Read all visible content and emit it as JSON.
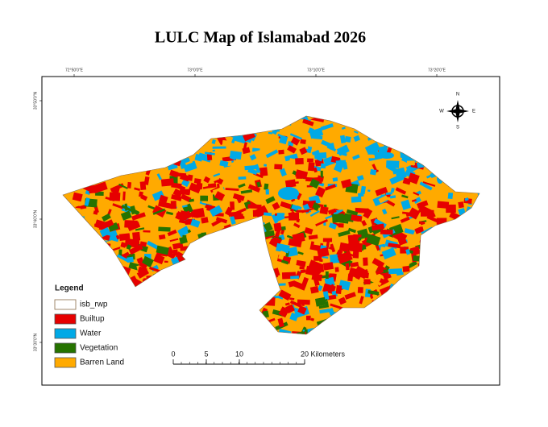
{
  "title": "LULC Map of Islamabad 2026",
  "graticule": {
    "top": [
      "72°50'0\"E",
      "73°0'0\"E",
      "73°10'0\"E",
      "73°20'0\"E"
    ],
    "left": [
      "33°50'0\"N",
      "33°40'0\"N",
      "33°30'0\"N"
    ]
  },
  "legend": {
    "title": "Legend",
    "items": [
      {
        "label": "isb_rwp",
        "color": "#ffffff",
        "border": "#8b6b4a"
      },
      {
        "label": "Builtup",
        "color": "#e60000",
        "border": "#555555"
      },
      {
        "label": "Water",
        "color": "#00a9e6",
        "border": "#555555"
      },
      {
        "label": "Vegetation",
        "color": "#267300",
        "border": "#555555"
      },
      {
        "label": "Barren Land",
        "color": "#ffaa00",
        "border": "#555555"
      }
    ]
  },
  "scale_bar": {
    "labels": [
      "0",
      "5",
      "10",
      "20 Kilometers"
    ]
  },
  "north_arrow": {
    "n": "N",
    "e": "E",
    "s": "S",
    "w": "W"
  }
}
